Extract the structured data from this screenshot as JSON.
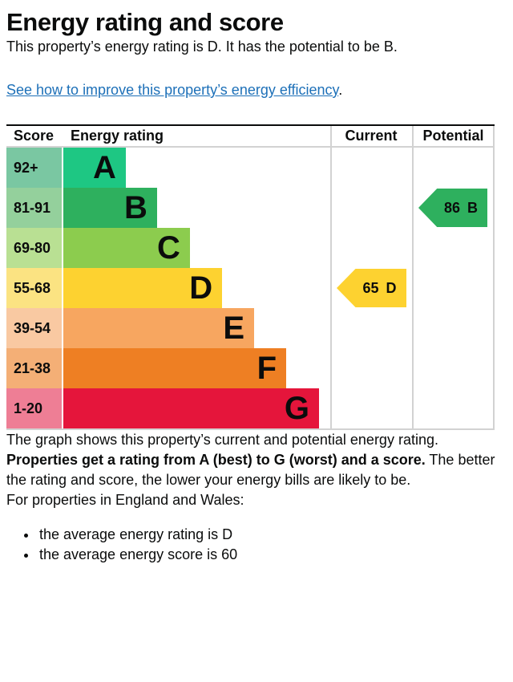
{
  "page": {
    "title": "Energy rating and score",
    "intro": "This property’s energy rating is D. It has the potential to be B.",
    "improve_link": "See how to improve this property’s energy efficiency",
    "improve_link_suffix": ".",
    "graph_caption": "The graph shows this property’s current and potential energy rating.",
    "explain_bold": "Properties get a rating from A (best) to G (worst) and a score.",
    "explain_rest": " The better the rating and score, the lower your energy bills are likely to be.",
    "region_heading": "For properties in England and Wales:",
    "bullets": [
      "the average energy rating is D",
      "the average energy score is 60"
    ]
  },
  "chart": {
    "headers": {
      "score": "Score",
      "rating": "Energy rating",
      "current": "Current",
      "potential": "Potential"
    },
    "bands": [
      {
        "range": "92+",
        "letter": "A",
        "bar_color": "#1ec783",
        "cell_color": "#7ac7a2",
        "width_pct": 23.4
      },
      {
        "range": "81-91",
        "letter": "B",
        "bar_color": "#2eb05e",
        "cell_color": "#94d09c",
        "width_pct": 35.1
      },
      {
        "range": "69-80",
        "letter": "C",
        "bar_color": "#8ccc4e",
        "cell_color": "#b9e093",
        "width_pct": 47.4
      },
      {
        "range": "55-68",
        "letter": "D",
        "bar_color": "#fdd230",
        "cell_color": "#fbe382",
        "width_pct": 59.5
      },
      {
        "range": "39-54",
        "letter": "E",
        "bar_color": "#f7a660",
        "cell_color": "#f9c9a2",
        "width_pct": 71.5
      },
      {
        "range": "21-38",
        "letter": "F",
        "bar_color": "#ee7f23",
        "cell_color": "#f4af76",
        "width_pct": 83.5
      },
      {
        "range": "1-20",
        "letter": "G",
        "bar_color": "#e5153b",
        "cell_color": "#ee7e95",
        "width_pct": 95.8
      }
    ],
    "current": {
      "value": "65",
      "letter": "D",
      "color": "#fdd230",
      "row": 3
    },
    "potential": {
      "value": "86",
      "letter": "B",
      "color": "#2eb05e",
      "row": 1
    }
  },
  "chart_data": {
    "type": "bar",
    "title": "Energy rating and score",
    "columns": [
      "Score",
      "Energy rating",
      "Current",
      "Potential"
    ],
    "categories": [
      "A",
      "B",
      "C",
      "D",
      "E",
      "F",
      "G"
    ],
    "score_ranges": [
      "92+",
      "81-91",
      "69-80",
      "55-68",
      "39-54",
      "21-38",
      "1-20"
    ],
    "bar_relative_widths": [
      0.23,
      0.35,
      0.47,
      0.6,
      0.72,
      0.84,
      0.96
    ],
    "band_colors": [
      "#1ec783",
      "#2eb05e",
      "#8ccc4e",
      "#fdd230",
      "#f7a660",
      "#ee7f23",
      "#e5153b"
    ],
    "score_cell_colors": [
      "#7ac7a2",
      "#94d09c",
      "#b9e093",
      "#fbe382",
      "#f9c9a2",
      "#f4af76",
      "#ee7e95"
    ],
    "current": {
      "score": 65,
      "rating": "D"
    },
    "potential": {
      "score": 86,
      "rating": "B"
    },
    "legend_position": "none",
    "grid": false
  }
}
